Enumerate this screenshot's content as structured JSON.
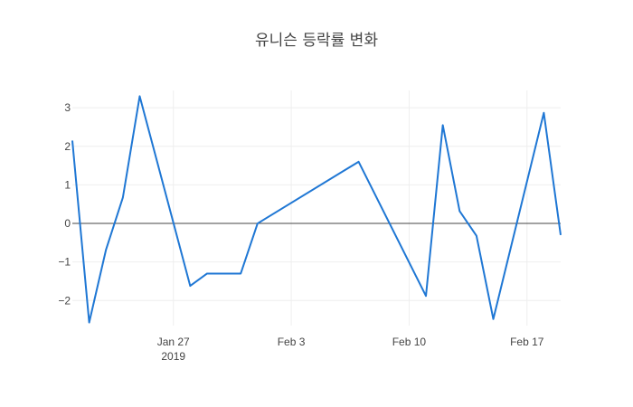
{
  "chart_data": {
    "type": "line",
    "title": "유니슨 등락률 변화",
    "xlabel": "",
    "ylabel": "",
    "grid": true,
    "zero_line": true,
    "x_ticks": [
      {
        "date": "2019-01-27",
        "label": "Jan 27",
        "sublabel": "2019"
      },
      {
        "date": "2019-02-03",
        "label": "Feb 3",
        "sublabel": ""
      },
      {
        "date": "2019-02-10",
        "label": "Feb 10",
        "sublabel": ""
      },
      {
        "date": "2019-02-17",
        "label": "Feb 17",
        "sublabel": ""
      }
    ],
    "y_ticks": [
      {
        "value": 3,
        "label": "3"
      },
      {
        "value": 2,
        "label": "2"
      },
      {
        "value": 1,
        "label": "1"
      },
      {
        "value": 0,
        "label": "0"
      },
      {
        "value": -1,
        "label": "−1"
      },
      {
        "value": -2,
        "label": "−2"
      }
    ],
    "xlim": [
      "2019-01-21",
      "2019-02-19"
    ],
    "ylim": [
      -2.65,
      3.45
    ],
    "series": [
      {
        "color": "#1f77d4",
        "x": [
          "2019-01-21",
          "2019-01-22",
          "2019-01-23",
          "2019-01-24",
          "2019-01-25",
          "2019-01-28",
          "2019-01-29",
          "2019-01-30",
          "2019-01-31",
          "2019-02-01",
          "2019-02-07",
          "2019-02-11",
          "2019-02-12",
          "2019-02-13",
          "2019-02-14",
          "2019-02-15",
          "2019-02-18",
          "2019-02-19"
        ],
        "y": [
          2.15,
          -2.57,
          -0.68,
          0.67,
          3.3,
          -1.62,
          -1.3,
          -1.3,
          -1.3,
          0.0,
          1.6,
          -1.88,
          2.55,
          0.32,
          -0.32,
          -2.48,
          2.87,
          -0.3
        ]
      }
    ]
  }
}
